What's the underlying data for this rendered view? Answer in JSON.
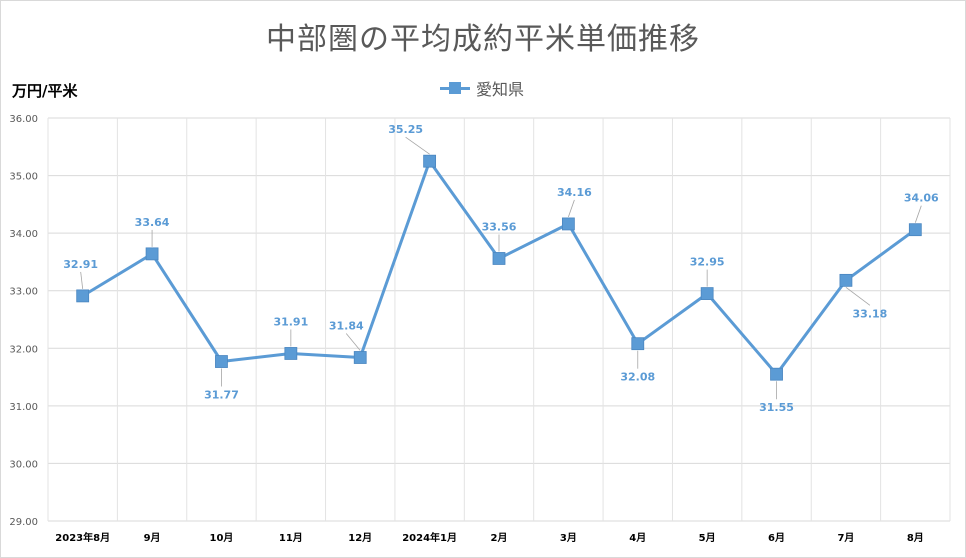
{
  "chart_data": {
    "type": "line",
    "title": "中部圏の平均成約平米単価推移",
    "ylabel": "万円/平米",
    "xlabel": "",
    "categories": [
      "2023年8月",
      "9月",
      "10月",
      "11月",
      "12月",
      "2024年1月",
      "2月",
      "3月",
      "4月",
      "5月",
      "6月",
      "7月",
      "8月"
    ],
    "series": [
      {
        "name": "愛知県",
        "color": "#5b9bd5",
        "values": [
          32.91,
          33.64,
          31.77,
          31.91,
          31.84,
          35.25,
          33.56,
          34.16,
          32.08,
          32.95,
          31.55,
          33.18,
          34.06
        ],
        "labels": [
          "32.91",
          "33.64",
          "31.77",
          "31.91",
          "31.84",
          "35.25",
          "33.56",
          "34.16",
          "32.08",
          "32.95",
          "31.55",
          "33.18",
          "34.06"
        ]
      }
    ],
    "ylim": [
      29.0,
      36.0
    ],
    "yticks": [
      "29.00",
      "30.00",
      "31.00",
      "32.00",
      "33.00",
      "34.00",
      "35.00",
      "36.00"
    ],
    "grid": true,
    "legend_position": "top"
  }
}
